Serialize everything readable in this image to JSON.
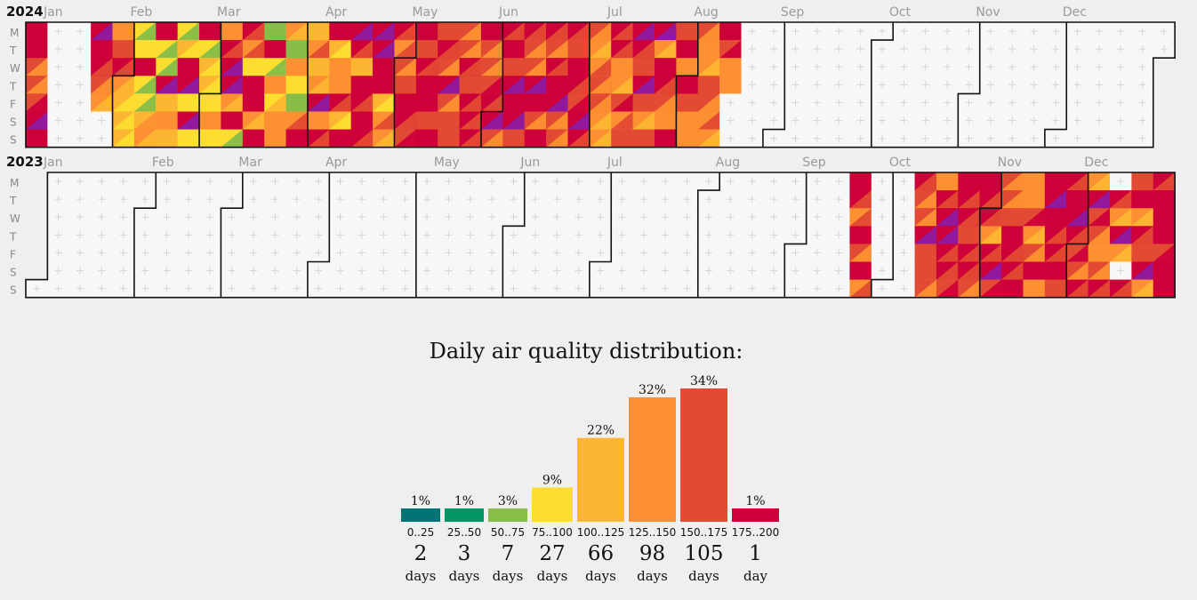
{
  "calendar": {
    "weekday_labels": [
      "M",
      "T",
      "W",
      "T",
      "F",
      "S",
      "S"
    ],
    "years": [
      {
        "year": "2024",
        "month_labels": [
          "Jan",
          "Feb",
          "Mar",
          "Apr",
          "May",
          "Jun",
          "Jul",
          "Aug",
          "Sep",
          "Oct",
          "Nov",
          "Dec"
        ],
        "data_range": [
          "2024-01-01",
          "2024-08-15"
        ],
        "missing_ranges": [
          [
            "2024-01-08",
            "2024-01-21"
          ],
          [
            "2024-01-27",
            "2024-01-28"
          ]
        ]
      },
      {
        "year": "2023",
        "month_labels": [
          "Jan",
          "Feb",
          "Mar",
          "Apr",
          "May",
          "Jun",
          "Jul",
          "Aug",
          "Sep",
          "Oct",
          "Nov",
          "Dec"
        ],
        "data_range": [
          "2023-09-18",
          "2023-12-31"
        ],
        "missing_ranges": [
          [
            "2023-09-25",
            "2023-10-08"
          ],
          [
            "2023-12-11",
            "2023-12-11"
          ],
          [
            "2023-12-16",
            "2023-12-16"
          ]
        ]
      }
    ],
    "colors": {
      "empty_cell": "#f7f7f7",
      "grid_plus": "#d5d5d5",
      "month_border": "#111111",
      "level_0": "#007377",
      "level_1": "#009564",
      "level_2": "#87bd48",
      "level_3": "#fdde30",
      "level_4": "#fdb632",
      "level_5": "#fd9032",
      "level_6": "#e34a33",
      "level_7": "#ce0039",
      "level_8": "#8e1aa0"
    }
  },
  "distribution": {
    "title": "Daily air quality distribution:",
    "bins": [
      {
        "range": "0..25",
        "count": "2",
        "unit": "days",
        "percent": "1%",
        "value": 2,
        "color": "#007377"
      },
      {
        "range": "25..50",
        "count": "3",
        "unit": "days",
        "percent": "1%",
        "value": 3,
        "color": "#009564"
      },
      {
        "range": "50..75",
        "count": "7",
        "unit": "days",
        "percent": "3%",
        "value": 7,
        "color": "#87bd48"
      },
      {
        "range": "75..100",
        "count": "27",
        "unit": "days",
        "percent": "9%",
        "value": 27,
        "color": "#fdde30"
      },
      {
        "range": "100..125",
        "count": "66",
        "unit": "days",
        "percent": "22%",
        "value": 66,
        "color": "#fdb632"
      },
      {
        "range": "125..150",
        "count": "98",
        "unit": "days",
        "percent": "32%",
        "value": 98,
        "color": "#fd9032"
      },
      {
        "range": "150..175",
        "count": "105",
        "unit": "days",
        "percent": "34%",
        "value": 105,
        "color": "#e34a33"
      },
      {
        "range": "175..200",
        "count": "1",
        "unit": "day",
        "percent": "1%",
        "value": 1,
        "color": "#ce0039"
      }
    ]
  },
  "chart_data": [
    {
      "type": "heatmap",
      "title": "",
      "x": "week of year",
      "y": [
        "M",
        "T",
        "W",
        "T",
        "F",
        "S",
        "S"
      ],
      "series": [
        {
          "name": "2024",
          "values_range": [
            "2024-01-01",
            "2024-08-15"
          ]
        },
        {
          "name": "2023",
          "values_range": [
            "2023-09-18",
            "2023-12-31"
          ]
        }
      ]
    },
    {
      "type": "bar",
      "title": "Daily air quality distribution:",
      "categories": [
        "0..25",
        "25..50",
        "50..75",
        "75..100",
        "100..125",
        "125..150",
        "150..175",
        "175..200"
      ],
      "values": [
        2,
        3,
        7,
        27,
        66,
        98,
        105,
        1
      ],
      "percent_labels": [
        "1%",
        "1%",
        "3%",
        "9%",
        "22%",
        "32%",
        "34%",
        "1%"
      ]
    }
  ]
}
